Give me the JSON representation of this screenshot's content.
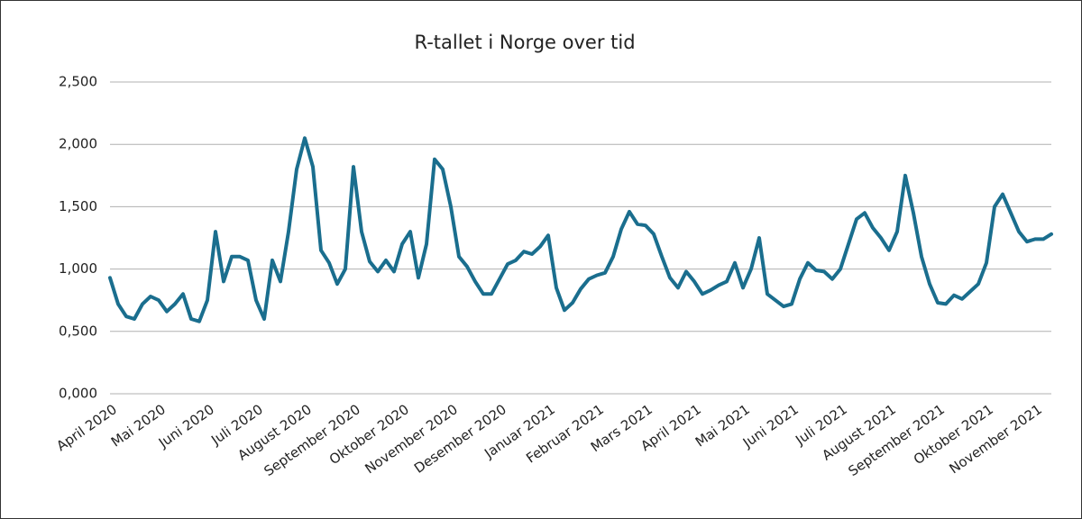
{
  "chart_data": {
    "type": "line",
    "title": "R-tallet i Norge over tid",
    "categories": [
      "April 2020",
      null,
      null,
      null,
      null,
      null,
      "Mai 2020",
      null,
      null,
      null,
      null,
      null,
      "Juni 2020",
      null,
      null,
      null,
      null,
      null,
      "Juli 2020",
      null,
      null,
      null,
      null,
      null,
      "August 2020",
      null,
      null,
      null,
      null,
      null,
      "September 2020",
      null,
      null,
      null,
      null,
      null,
      "Oktober 2020",
      null,
      null,
      null,
      null,
      null,
      "November 2020",
      null,
      null,
      null,
      null,
      null,
      "Desember 2020",
      null,
      null,
      null,
      null,
      null,
      "Januar 2021",
      null,
      null,
      null,
      null,
      null,
      "Februar 2021",
      null,
      null,
      null,
      null,
      null,
      "Mars 2021",
      null,
      null,
      null,
      null,
      null,
      "April 2021",
      null,
      null,
      null,
      null,
      null,
      "Mai 2021",
      null,
      null,
      null,
      null,
      null,
      "Juni 2021",
      null,
      null,
      null,
      null,
      null,
      "Juli 2021",
      null,
      null,
      null,
      null,
      null,
      "August 2021",
      null,
      null,
      null,
      null,
      null,
      "September 2021",
      null,
      null,
      null,
      null,
      null,
      "Oktober 2021",
      null,
      null,
      null,
      null,
      null,
      "November 2021",
      null,
      null
    ],
    "values": [
      0.93,
      0.72,
      0.62,
      0.6,
      0.72,
      0.78,
      0.75,
      0.66,
      0.72,
      0.8,
      0.6,
      0.58,
      0.75,
      1.3,
      0.9,
      1.1,
      1.1,
      1.07,
      0.75,
      0.6,
      1.07,
      0.9,
      1.3,
      1.8,
      2.05,
      1.82,
      1.15,
      1.05,
      0.88,
      1.0,
      1.82,
      1.3,
      1.06,
      0.98,
      1.07,
      0.98,
      1.2,
      1.3,
      0.93,
      1.2,
      1.88,
      1.8,
      1.5,
      1.1,
      1.02,
      0.9,
      0.8,
      0.8,
      0.92,
      1.04,
      1.07,
      1.14,
      1.12,
      1.18,
      1.27,
      0.85,
      0.67,
      0.73,
      0.84,
      0.92,
      0.95,
      0.97,
      1.1,
      1.32,
      1.46,
      1.36,
      1.35,
      1.28,
      1.1,
      0.93,
      0.85,
      0.98,
      0.9,
      0.8,
      0.83,
      0.87,
      0.9,
      1.05,
      0.85,
      1.0,
      1.25,
      0.8,
      0.75,
      0.7,
      0.72,
      0.92,
      1.05,
      0.99,
      0.98,
      0.92,
      1.0,
      1.2,
      1.4,
      1.45,
      1.33,
      1.25,
      1.15,
      1.3,
      1.75,
      1.45,
      1.1,
      0.88,
      0.73,
      0.72,
      0.79,
      0.76,
      0.82,
      0.88,
      1.05,
      1.5,
      1.6,
      1.45,
      1.3,
      1.22,
      1.24,
      1.24,
      1.28
    ],
    "color": "#1a6e8e",
    "ylim": [
      0,
      2.5
    ],
    "yticks": [
      {
        "value": 0,
        "label": "0,000"
      },
      {
        "value": 0.5,
        "label": "0,500"
      },
      {
        "value": 1,
        "label": "1,000"
      },
      {
        "value": 1.5,
        "label": "1,500"
      },
      {
        "value": 2,
        "label": "2,000"
      },
      {
        "value": 2.5,
        "label": "2,500"
      }
    ],
    "grid": true
  }
}
